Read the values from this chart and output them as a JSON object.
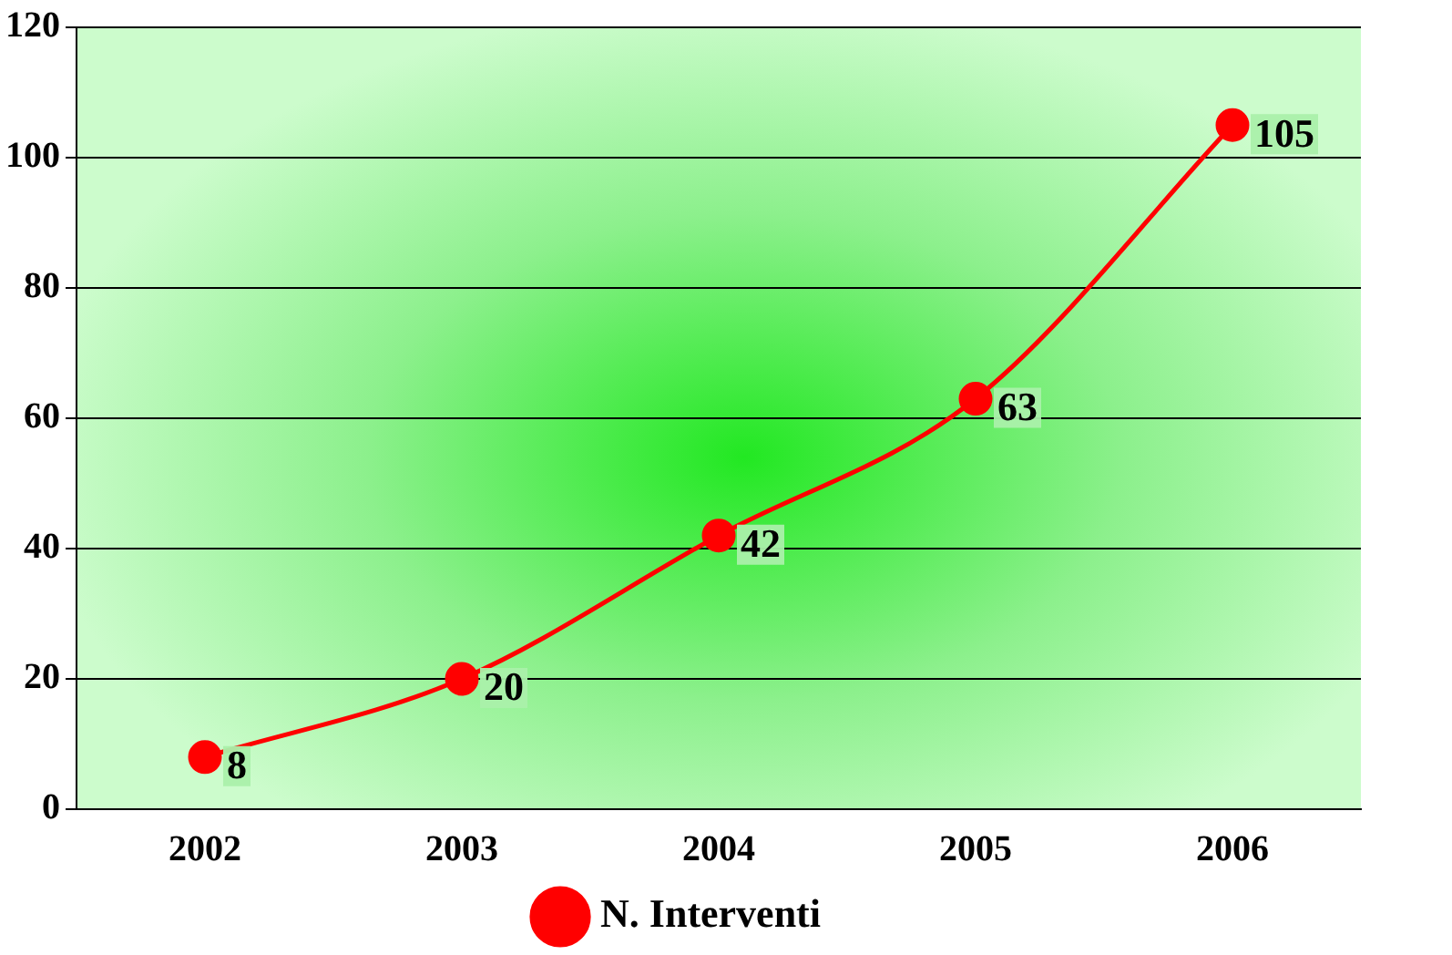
{
  "chart_data": {
    "type": "line",
    "categories": [
      "2002",
      "2003",
      "2004",
      "2005",
      "2006"
    ],
    "series": [
      {
        "name": "N. Interventi",
        "color": "#ff0000",
        "values": [
          8,
          20,
          42,
          63,
          105
        ]
      }
    ],
    "ylim": [
      0,
      120
    ],
    "yticks": [
      0,
      20,
      40,
      60,
      80,
      100,
      120
    ],
    "grid": "y",
    "legend": "bottom",
    "marker": "circle",
    "line_style": "solid",
    "data_labels": true
  }
}
